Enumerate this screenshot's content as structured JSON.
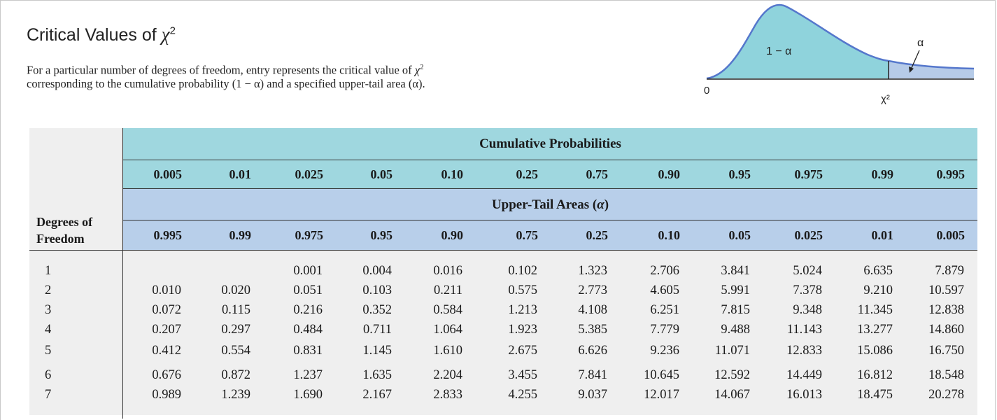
{
  "header": {
    "title_text": "Critical Values of ",
    "title_symbol": "χ",
    "title_exp": "2",
    "desc_line1_a": "For a particular number of degrees of freedom, entry represents the critical value of ",
    "desc_line1_sym": "χ",
    "desc_line1_exp": "2",
    "desc_line2": "corresponding to the cumulative probability (1 − α) and a specified upper-tail area (α)."
  },
  "figure": {
    "label_area": "1 − α",
    "label_alpha": "α",
    "label_zero": "0",
    "label_chi": "χ²",
    "colors": {
      "body": "#8fd3dc",
      "tail": "#b6cbe8",
      "stroke": "#5577cc"
    }
  },
  "table": {
    "df_header": [
      "Degrees of",
      "Freedom"
    ],
    "cumulative_title": "Cumulative Probabilities",
    "upper_title_text": "Upper-Tail Areas (",
    "upper_title_sym": "α",
    "upper_title_close": ")",
    "cumulative": [
      "0.005",
      "0.01",
      "0.025",
      "0.05",
      "0.10",
      "0.25",
      "0.75",
      "0.90",
      "0.95",
      "0.975",
      "0.99",
      "0.995"
    ],
    "upper": [
      "0.995",
      "0.99",
      "0.975",
      "0.95",
      "0.90",
      "0.75",
      "0.25",
      "0.10",
      "0.05",
      "0.025",
      "0.01",
      "0.005"
    ],
    "rows": [
      {
        "df": "1",
        "values": [
          "",
          "",
          "0.001",
          "0.004",
          "0.016",
          "0.102",
          "1.323",
          "2.706",
          "3.841",
          "5.024",
          "6.635",
          "7.879"
        ]
      },
      {
        "df": "2",
        "values": [
          "0.010",
          "0.020",
          "0.051",
          "0.103",
          "0.211",
          "0.575",
          "2.773",
          "4.605",
          "5.991",
          "7.378",
          "9.210",
          "10.597"
        ]
      },
      {
        "df": "3",
        "values": [
          "0.072",
          "0.115",
          "0.216",
          "0.352",
          "0.584",
          "1.213",
          "4.108",
          "6.251",
          "7.815",
          "9.348",
          "11.345",
          "12.838"
        ]
      },
      {
        "df": "4",
        "values": [
          "0.207",
          "0.297",
          "0.484",
          "0.711",
          "1.064",
          "1.923",
          "5.385",
          "7.779",
          "9.488",
          "11.143",
          "13.277",
          "14.860"
        ]
      },
      {
        "df": "5",
        "values": [
          "0.412",
          "0.554",
          "0.831",
          "1.145",
          "1.610",
          "2.675",
          "6.626",
          "9.236",
          "11.071",
          "12.833",
          "15.086",
          "16.750"
        ]
      },
      {
        "df": "6",
        "values": [
          "0.676",
          "0.872",
          "1.237",
          "1.635",
          "2.204",
          "3.455",
          "7.841",
          "10.645",
          "12.592",
          "14.449",
          "16.812",
          "18.548"
        ]
      },
      {
        "df": "7",
        "values": [
          "0.989",
          "1.239",
          "1.690",
          "2.167",
          "2.833",
          "4.255",
          "9.037",
          "12.017",
          "14.067",
          "16.013",
          "18.475",
          "20.278"
        ]
      }
    ]
  }
}
